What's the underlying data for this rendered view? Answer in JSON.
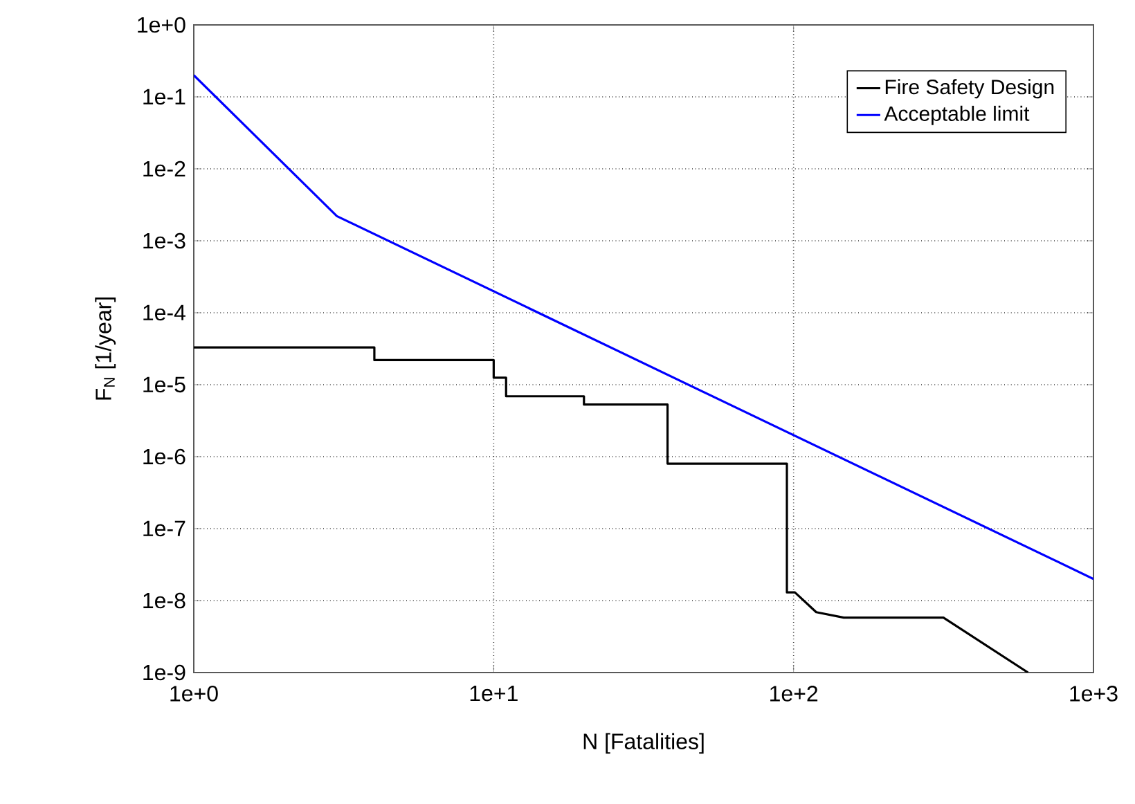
{
  "chart_data": {
    "type": "line",
    "xlabel": "N [Fatalities]",
    "ylabel": "F$_{N}$ [1/year]",
    "log": "xy",
    "grid": true,
    "legend": "top right",
    "marker": "none",
    "line_style": "solid",
    "xlim": [
      1,
      1000
    ],
    "ylim": [
      1e-09,
      1
    ],
    "xticks": [
      {
        "value": 1,
        "label": "1e+0"
      },
      {
        "value": 10,
        "label": "1e+1"
      },
      {
        "value": 100,
        "label": "1e+2"
      },
      {
        "value": 1000,
        "label": "1e+3"
      }
    ],
    "yticks": [
      {
        "value": 1e-09,
        "label": "1e-9"
      },
      {
        "value": 1e-08,
        "label": "1e-8"
      },
      {
        "value": 1e-07,
        "label": "1e-7"
      },
      {
        "value": 1e-06,
        "label": "1e-6"
      },
      {
        "value": 1e-05,
        "label": "1e-5"
      },
      {
        "value": 0.0001,
        "label": "1e-4"
      },
      {
        "value": 0.001,
        "label": "1e-3"
      },
      {
        "value": 0.01,
        "label": "1e-2"
      },
      {
        "value": 0.1,
        "label": "1e-1"
      },
      {
        "value": 1,
        "label": "1e+0"
      }
    ],
    "series": [
      {
        "name": "Fire Safety Design",
        "color": "#000000",
        "x": [
          1,
          4,
          4,
          10,
          10,
          11,
          11,
          20,
          20,
          38,
          38,
          95,
          95,
          101,
          119,
          147,
          316,
          605
        ],
        "values": [
          3.3e-05,
          3.3e-05,
          2.2e-05,
          2.2e-05,
          1.25e-05,
          1.25e-05,
          6.9e-06,
          6.9e-06,
          5.3e-06,
          5.3e-06,
          8e-07,
          8e-07,
          1.3e-08,
          1.3e-08,
          6.9e-09,
          5.8e-09,
          5.8e-09,
          1e-09
        ]
      },
      {
        "name": "Acceptable limit",
        "color": "#0000ff",
        "x": [
          1,
          3,
          1000
        ],
        "values": [
          0.2,
          0.0022,
          2e-08
        ]
      }
    ]
  }
}
